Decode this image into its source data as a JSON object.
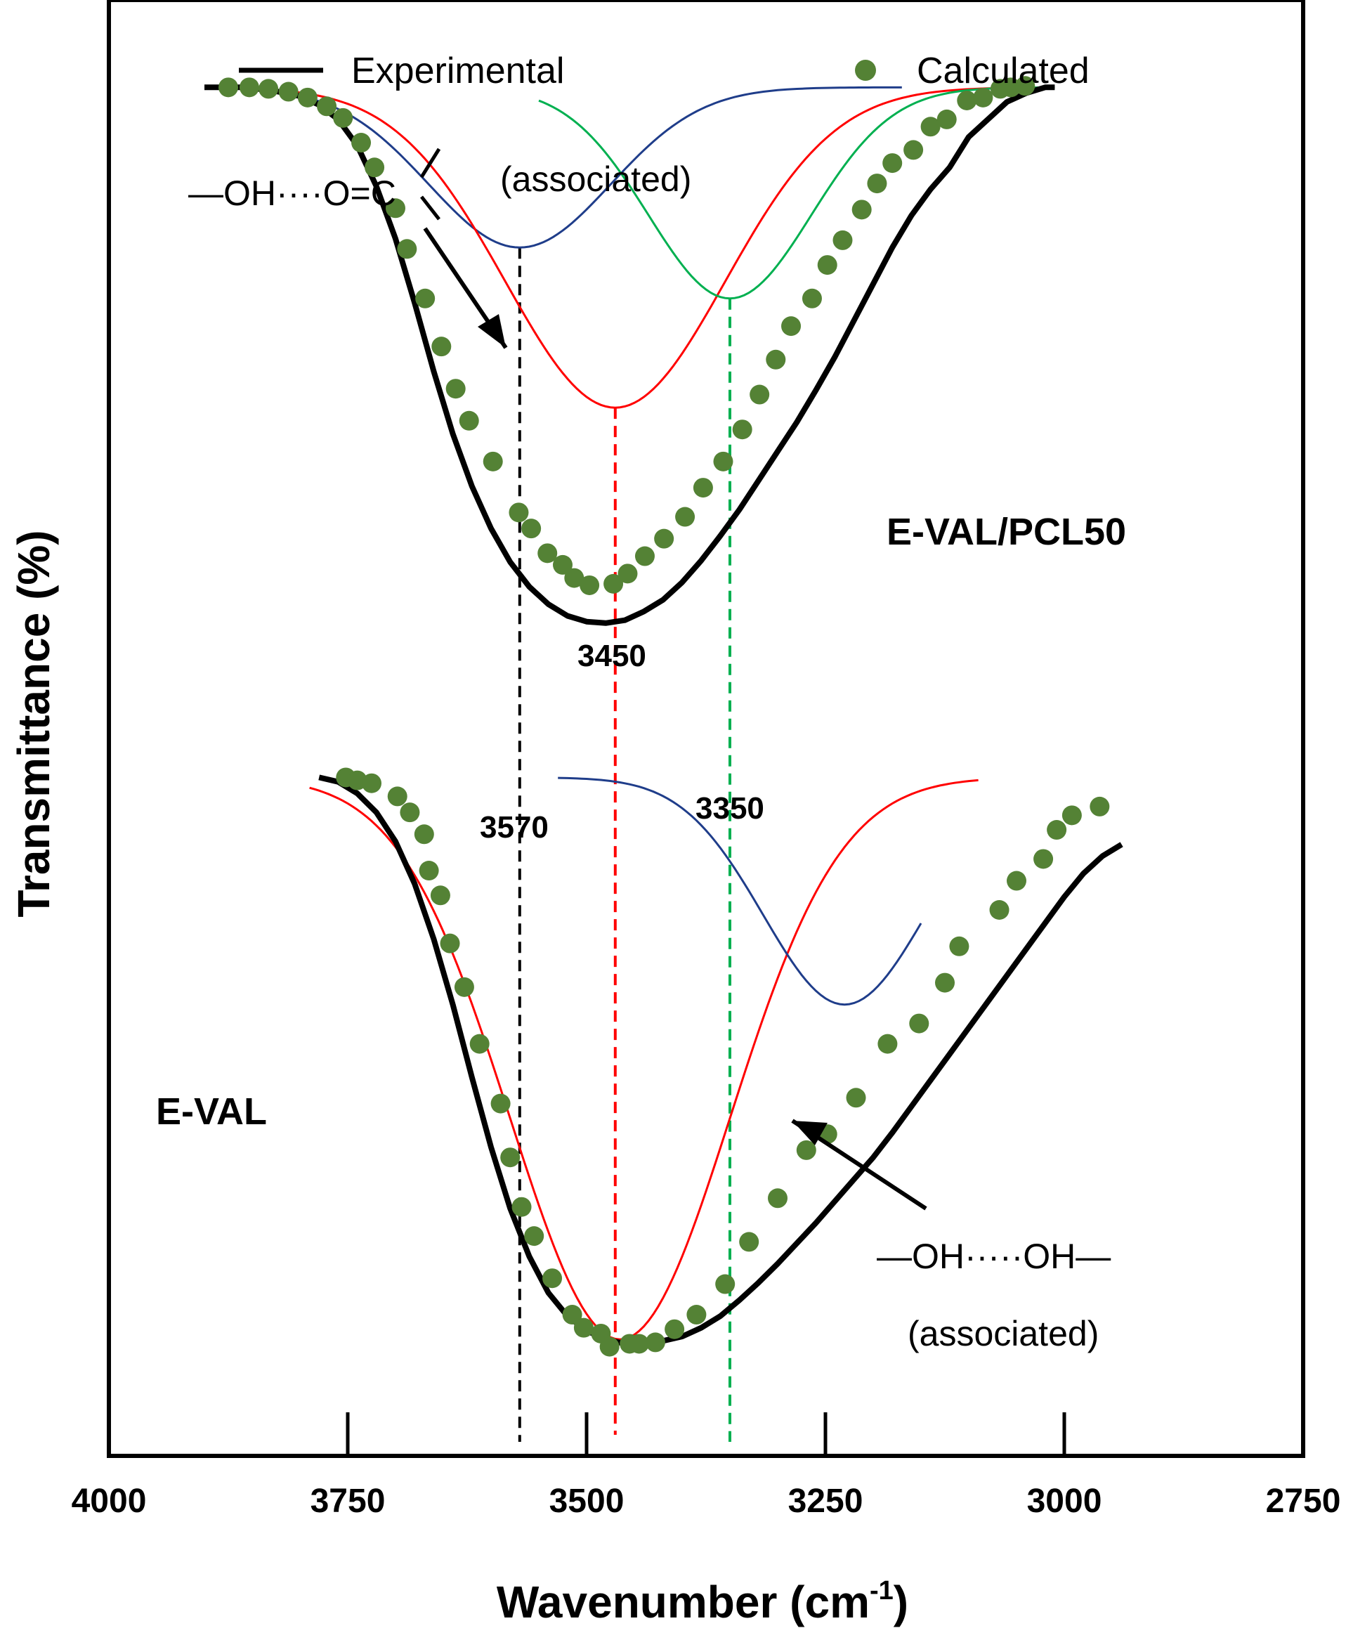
{
  "chart_data": {
    "type": "line",
    "title": "",
    "xlabel": "Wavenumber (cm",
    "xlabel_sup": "-1",
    "xlabel_close": ")",
    "ylabel": "Transmittance (%)",
    "xlim": [
      4000,
      2750
    ],
    "ylim": [
      0,
      1
    ],
    "x_ticks": [
      4000,
      3750,
      3500,
      3250,
      3000,
      2750
    ],
    "x_tick_labels": [
      "4000",
      "3750",
      "3500",
      "3250",
      "3000",
      "2750"
    ],
    "legend": {
      "placement": "top",
      "entries": [
        {
          "name": "Experimental",
          "style": "line",
          "color": "#000000"
        },
        {
          "name": "Calculated",
          "style": "marker",
          "color": "#548235"
        }
      ]
    },
    "spectra": [
      {
        "label": "E-VAL/PCL50",
        "baseline": 0.94,
        "experimental": {
          "x": [
            3900,
            3860,
            3830,
            3800,
            3780,
            3760,
            3740,
            3720,
            3700,
            3680,
            3660,
            3640,
            3620,
            3600,
            3580,
            3560,
            3540,
            3520,
            3500,
            3480,
            3460,
            3440,
            3420,
            3400,
            3380,
            3360,
            3340,
            3320,
            3300,
            3280,
            3260,
            3240,
            3220,
            3200,
            3180,
            3160,
            3140,
            3120,
            3100,
            3080,
            3060,
            3040,
            3020,
            3010
          ],
          "y": [
            0.94,
            0.94,
            0.938,
            0.934,
            0.928,
            0.918,
            0.9,
            0.872,
            0.836,
            0.792,
            0.745,
            0.702,
            0.666,
            0.637,
            0.614,
            0.597,
            0.585,
            0.577,
            0.573,
            0.572,
            0.574,
            0.58,
            0.588,
            0.6,
            0.615,
            0.632,
            0.65,
            0.67,
            0.69,
            0.71,
            0.732,
            0.755,
            0.78,
            0.805,
            0.83,
            0.852,
            0.87,
            0.885,
            0.906,
            0.918,
            0.93,
            0.936,
            0.94,
            0.94
          ]
        },
        "calculated": {
          "x": [
            3875,
            3853,
            3833,
            3812,
            3792,
            3772,
            3755,
            3736,
            3722,
            3700,
            3688,
            3669,
            3652,
            3637,
            3623,
            3598,
            3571,
            3558,
            3541,
            3525,
            3513,
            3497,
            3472,
            3457,
            3439,
            3419,
            3397,
            3378,
            3357,
            3337,
            3319,
            3302,
            3286,
            3264,
            3248,
            3232,
            3212,
            3196,
            3180,
            3158,
            3140,
            3123,
            3102,
            3085,
            3067,
            3056,
            3041
          ],
          "y": [
            0.94,
            0.94,
            0.939,
            0.937,
            0.933,
            0.927,
            0.919,
            0.902,
            0.885,
            0.857,
            0.829,
            0.795,
            0.762,
            0.733,
            0.711,
            0.683,
            0.648,
            0.637,
            0.62,
            0.612,
            0.603,
            0.598,
            0.599,
            0.606,
            0.618,
            0.63,
            0.645,
            0.665,
            0.683,
            0.705,
            0.729,
            0.753,
            0.776,
            0.795,
            0.818,
            0.835,
            0.856,
            0.874,
            0.888,
            0.897,
            0.913,
            0.918,
            0.931,
            0.933,
            0.939,
            0.94,
            0.941
          ]
        },
        "components": [
          {
            "center": 3570,
            "min": 0.83,
            "width": 95,
            "start": 3900,
            "end": 3170,
            "color": "#1f3d8a"
          },
          {
            "center": 3470,
            "min": 0.72,
            "width": 115,
            "start": 3900,
            "end": 3010,
            "color": "#ff0000"
          },
          {
            "center": 3350,
            "min": 0.795,
            "width": 85,
            "start": 3550,
            "end": 3010,
            "color": "#00b050"
          }
        ]
      },
      {
        "label": "E-VAL",
        "baseline": 0.466,
        "experimental": {
          "x": [
            3780,
            3760,
            3740,
            3720,
            3700,
            3680,
            3660,
            3640,
            3620,
            3600,
            3580,
            3560,
            3540,
            3520,
            3500,
            3480,
            3460,
            3440,
            3420,
            3400,
            3380,
            3360,
            3340,
            3320,
            3300,
            3280,
            3260,
            3240,
            3220,
            3200,
            3180,
            3160,
            3140,
            3120,
            3100,
            3080,
            3060,
            3040,
            3020,
            3000,
            2980,
            2960,
            2940
          ],
          "y": [
            0.466,
            0.463,
            0.455,
            0.442,
            0.422,
            0.393,
            0.355,
            0.31,
            0.26,
            0.212,
            0.17,
            0.137,
            0.112,
            0.096,
            0.086,
            0.08,
            0.077,
            0.077,
            0.079,
            0.082,
            0.088,
            0.096,
            0.107,
            0.119,
            0.132,
            0.146,
            0.16,
            0.175,
            0.19,
            0.205,
            0.222,
            0.24,
            0.258,
            0.276,
            0.294,
            0.312,
            0.33,
            0.348,
            0.366,
            0.384,
            0.4,
            0.412,
            0.42
          ]
        },
        "calculated": {
          "x": [
            3752,
            3740,
            3725,
            3698,
            3685,
            3670,
            3665,
            3653,
            3643,
            3628,
            3612,
            3590,
            3580,
            3568,
            3555,
            3536,
            3515,
            3503,
            3485,
            3476,
            3455,
            3445,
            3428,
            3408,
            3385,
            3355,
            3330,
            3300,
            3270,
            3248,
            3218,
            3185,
            3152,
            3125,
            3110,
            3068,
            3050,
            3022,
            3008,
            2992,
            2963
          ],
          "y": [
            0.466,
            0.464,
            0.462,
            0.453,
            0.442,
            0.427,
            0.402,
            0.385,
            0.352,
            0.322,
            0.283,
            0.242,
            0.205,
            0.171,
            0.151,
            0.122,
            0.097,
            0.088,
            0.084,
            0.075,
            0.077,
            0.077,
            0.078,
            0.087,
            0.097,
            0.118,
            0.147,
            0.177,
            0.21,
            0.221,
            0.246,
            0.283,
            0.297,
            0.325,
            0.35,
            0.375,
            0.395,
            0.41,
            0.43,
            0.44,
            0.446
          ]
        },
        "components": [
          {
            "center": 3465,
            "min": 0.08,
            "width": 115,
            "start": 3790,
            "end": 3090,
            "color": "#ff0000"
          },
          {
            "center": 3230,
            "min": 0.31,
            "width": 85,
            "start": 3530,
            "end": 3150,
            "color": "#1f3d8a"
          }
        ]
      }
    ],
    "reference_lines": [
      {
        "x": 3570,
        "label": "3570",
        "color": "#000000"
      },
      {
        "x": 3450,
        "label": "3450",
        "color": "#ff0000"
      },
      {
        "x": 3350,
        "label": "3350",
        "color": "#00b050"
      }
    ],
    "annotations": {
      "top_group": "—OH····O=C",
      "top_assoc": "(associated)",
      "bottom_group": "—OH·····OH—",
      "bottom_assoc": "(associated)"
    }
  }
}
